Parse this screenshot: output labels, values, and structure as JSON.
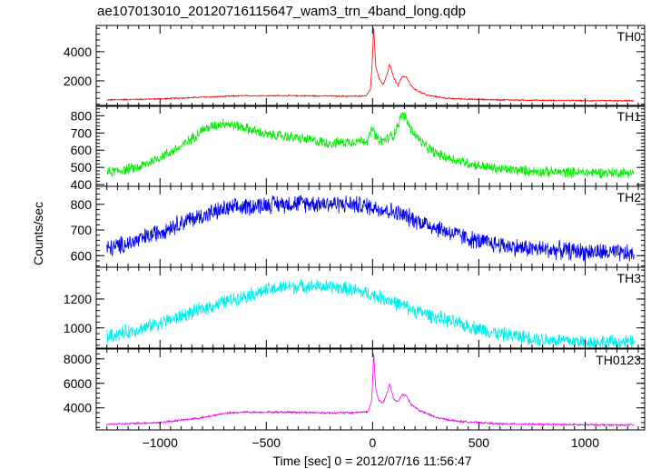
{
  "chart_data": {
    "type": "line",
    "title": "ae107013010_20120716115647_wam3_trn_4band_long.qdp",
    "xlabel": "Time [sec] 0 = 2012/07/16 11:56:47",
    "ylabel": "Counts/sec",
    "xlim": [
      -1300,
      1280
    ],
    "x_ticks": [
      -1000,
      -500,
      0,
      500,
      1000
    ],
    "x_tick_labels": [
      "−1000",
      "−500",
      "0",
      "500",
      "1000"
    ],
    "panels": [
      {
        "name": "TH0",
        "color": "#ff0000",
        "ylim": [
          250,
          5800
        ],
        "y_ticks": [
          2000,
          4000
        ],
        "y_tick_labels": [
          "2000",
          "4000"
        ],
        "noise": 40,
        "series": {
          "x": [
            -1250,
            -1000,
            -800,
            -600,
            -400,
            -200,
            -100,
            -30,
            -10,
            0,
            5,
            15,
            30,
            50,
            70,
            80,
            100,
            120,
            140,
            160,
            180,
            200,
            260,
            350,
            500,
            700,
            1000,
            1230
          ],
          "y": [
            690,
            760,
            880,
            980,
            980,
            960,
            940,
            980,
            1400,
            3600,
            5750,
            3000,
            2200,
            1700,
            2500,
            3150,
            2200,
            1700,
            2300,
            2250,
            1700,
            1400,
            1000,
            800,
            720,
            680,
            640,
            630
          ]
        }
      },
      {
        "name": "TH1",
        "color": "#00ee00",
        "ylim": [
          390,
          860
        ],
        "y_ticks": [
          400,
          500,
          600,
          700,
          800
        ],
        "y_tick_labels": [
          "400",
          "500",
          "600",
          "700",
          "800"
        ],
        "noise": 28,
        "series": {
          "x": [
            -1250,
            -1100,
            -900,
            -800,
            -700,
            -600,
            -500,
            -400,
            -300,
            -200,
            -100,
            -20,
            0,
            10,
            30,
            60,
            100,
            140,
            160,
            180,
            200,
            250,
            300,
            400,
            500,
            600,
            800,
            1000,
            1230
          ],
          "y": [
            470,
            500,
            620,
            720,
            760,
            730,
            690,
            680,
            660,
            640,
            650,
            660,
            730,
            690,
            650,
            660,
            690,
            810,
            780,
            720,
            690,
            620,
            580,
            540,
            510,
            490,
            475,
            470,
            470
          ]
        }
      },
      {
        "name": "TH2",
        "color": "#0000ee",
        "ylim": [
          555,
          870
        ],
        "y_ticks": [
          600,
          700,
          800
        ],
        "y_tick_labels": [
          "600",
          "700",
          "800"
        ],
        "noise": 32,
        "series": {
          "x": [
            -1250,
            -1100,
            -900,
            -700,
            -500,
            -300,
            -100,
            0,
            100,
            200,
            300,
            400,
            500,
            700,
            900,
            1100,
            1230
          ],
          "y": [
            625,
            660,
            730,
            780,
            800,
            805,
            800,
            790,
            770,
            740,
            710,
            680,
            655,
            630,
            620,
            612,
            605
          ]
        }
      },
      {
        "name": "TH3",
        "color": "#00eeee",
        "ylim": [
          860,
          1420
        ],
        "y_ticks": [
          1000,
          1200
        ],
        "y_tick_labels": [
          "1000",
          "1200"
        ],
        "noise": 45,
        "series": {
          "x": [
            -1250,
            -1100,
            -900,
            -700,
            -500,
            -400,
            -300,
            -200,
            -100,
            0,
            100,
            200,
            400,
            600,
            800,
            1000,
            1230
          ],
          "y": [
            940,
            990,
            1080,
            1180,
            1260,
            1285,
            1290,
            1285,
            1265,
            1230,
            1180,
            1120,
            1030,
            960,
            920,
            905,
            900
          ]
        }
      },
      {
        "name": "TH0123",
        "color": "#ee00ee",
        "ylim": [
          2200,
          8800
        ],
        "y_ticks": [
          4000,
          6000,
          8000
        ],
        "y_tick_labels": [
          "4000",
          "6000",
          "8000"
        ],
        "noise": 70,
        "series": {
          "x": [
            -1250,
            -1000,
            -800,
            -700,
            -600,
            -400,
            -200,
            -100,
            -20,
            -5,
            0,
            5,
            15,
            30,
            50,
            70,
            80,
            100,
            120,
            140,
            160,
            180,
            220,
            300,
            400,
            600,
            800,
            1000,
            1230
          ],
          "y": [
            2650,
            2800,
            3200,
            3550,
            3650,
            3650,
            3600,
            3600,
            3700,
            4500,
            6000,
            8500,
            5500,
            4600,
            4400,
            5300,
            5950,
            4700,
            4500,
            5100,
            5000,
            4300,
            3800,
            3200,
            2900,
            2700,
            2650,
            2620,
            2600
          ]
        }
      }
    ]
  }
}
